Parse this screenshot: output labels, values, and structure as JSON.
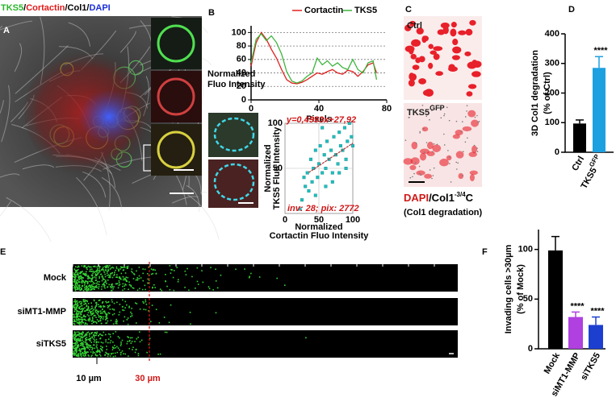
{
  "panel_labels": [
    "A",
    "B",
    "C",
    "D",
    "E",
    "F"
  ],
  "panel_a": {
    "title_parts": [
      "TKS5",
      "/",
      "Cortactin",
      "/",
      "Col1",
      "/",
      "DAPI"
    ],
    "title_colors": [
      "#2bb52b",
      "#000000",
      "#e01b1b",
      "#000000",
      "#000000",
      "#000000",
      "#1a2fd6"
    ]
  },
  "panel_c": {
    "image_labels": [
      "Ctrl",
      "TKS5"
    ],
    "image_label_superscripts": [
      null,
      "GFP"
    ],
    "caption_parts": [
      "DAPI",
      "/Col1",
      "-3/4",
      "C"
    ],
    "caption_line2": "(Col1 degradation)"
  },
  "panel_e": {
    "rows": [
      "Mock",
      "siMT1-MMP",
      "siTKS5"
    ],
    "markers": [
      "10 µm",
      "30 µm"
    ],
    "marker_colors": [
      "#000000",
      "#d01818"
    ]
  },
  "chart_data": [
    {
      "type": "line",
      "x_label": "Pixels",
      "y_label": [
        "Normalized",
        "Fluo Intensity"
      ],
      "x": [
        0,
        3,
        6,
        9,
        12,
        15,
        18,
        21,
        24,
        27,
        30,
        33,
        36,
        39,
        42,
        45,
        48,
        51,
        54,
        57,
        60,
        63,
        66,
        69,
        72,
        74
      ],
      "series": [
        {
          "name": "Cortactin",
          "color": "#e0201e",
          "values": [
            50,
            85,
            100,
            90,
            75,
            62,
            45,
            30,
            25,
            24,
            26,
            30,
            35,
            40,
            38,
            42,
            45,
            40,
            38,
            44,
            42,
            35,
            42,
            52,
            55,
            40
          ]
        },
        {
          "name": "TKS5",
          "color": "#3cb43c",
          "values": [
            55,
            90,
            98,
            88,
            95,
            85,
            68,
            42,
            28,
            25,
            28,
            35,
            40,
            62,
            52,
            58,
            50,
            55,
            48,
            45,
            60,
            45,
            40,
            55,
            58,
            30
          ]
        }
      ],
      "xlim": [
        0,
        80
      ],
      "xticks": [
        0,
        40,
        80
      ],
      "ylim": [
        0,
        110
      ],
      "yticks": [
        0,
        20,
        40,
        60,
        80,
        100
      ],
      "grid": true,
      "legend": "top"
    },
    {
      "type": "scatter",
      "x_label": [
        "Normalized",
        "Cortactin Fluo Intensity"
      ],
      "y_label": [
        "Normalized",
        "TKS5 Fluo Intensity"
      ],
      "color": "#1fbfbf",
      "x": [
        22,
        25,
        28,
        30,
        33,
        35,
        38,
        40,
        42,
        45,
        48,
        50,
        52,
        55,
        58,
        60,
        62,
        65,
        68,
        70,
        72,
        75,
        78,
        80,
        82,
        85,
        88,
        90,
        92,
        95,
        98,
        100,
        60,
        70,
        80,
        90,
        45,
        55
      ],
      "values": [
        5,
        15,
        40,
        30,
        45,
        25,
        60,
        35,
        50,
        70,
        40,
        55,
        75,
        45,
        65,
        50,
        80,
        60,
        70,
        45,
        85,
        65,
        55,
        90,
        75,
        70,
        95,
        60,
        80,
        100,
        85,
        75,
        30,
        35,
        45,
        50,
        20,
        95
      ],
      "fit": {
        "slope": 0.4993,
        "intercept": 27.92,
        "label": "y=0,4993x+27,92",
        "color": "#b03030"
      },
      "annotation": "inv: 28; pix: 2772",
      "xlim": [
        0,
        100
      ],
      "xticks": [
        0,
        50,
        100
      ],
      "ylim": [
        0,
        100
      ],
      "yticks": [
        50,
        100
      ],
      "grid": true
    },
    {
      "type": "bar",
      "y_label": [
        "3D Col1 degradation",
        "(% of Ctrl)"
      ],
      "categories": [
        "Ctrl",
        "TKS5"
      ],
      "category_superscripts": [
        null,
        "GFP"
      ],
      "values": [
        97,
        285
      ],
      "errors": [
        12,
        38
      ],
      "colors": [
        "#000000",
        "#1ca0e0"
      ],
      "significance": [
        null,
        "****"
      ],
      "ylim": [
        0,
        400
      ],
      "yticks": [
        0,
        100,
        200,
        300,
        400
      ]
    },
    {
      "type": "bar",
      "y_label": [
        "Invading cells >30µm",
        "(% of Mock)"
      ],
      "categories": [
        "Mock",
        "siMT1-MMP",
        "siTKS5"
      ],
      "category_superscripts": [
        null,
        null,
        null
      ],
      "values": [
        99,
        32,
        24
      ],
      "errors": [
        14,
        5,
        8
      ],
      "colors": [
        "#000000",
        "#b040e0",
        "#1d3fd0"
      ],
      "significance": [
        null,
        "****",
        "****"
      ],
      "ylim": [
        0,
        120
      ],
      "yticks": [
        0,
        50,
        100
      ]
    }
  ]
}
